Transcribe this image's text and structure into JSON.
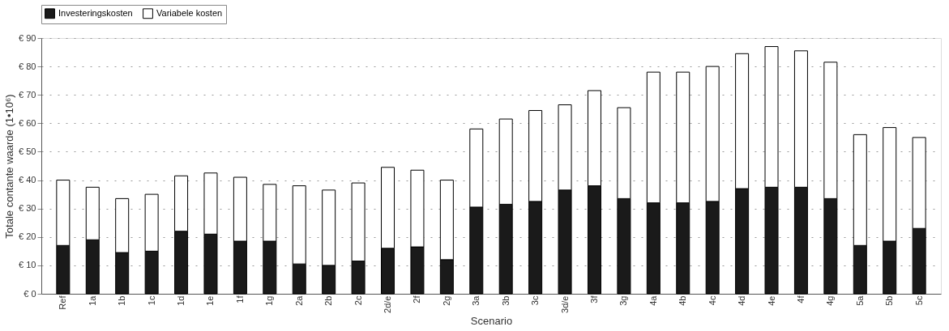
{
  "chart_data": {
    "type": "bar",
    "stacked": true,
    "xlabel": "Scenario",
    "ylabel": "Totale contante waarde (1•10⁶)",
    "categories": [
      "Ref",
      "1a",
      "1b",
      "1c",
      "1d",
      "1e",
      "1f",
      "1g",
      "2a",
      "2b",
      "2c",
      "2d/e",
      "2f",
      "2g",
      "3a",
      "3b",
      "3c",
      "3d/e",
      "3f",
      "3g",
      "4a",
      "4b",
      "4c",
      "4d",
      "4e",
      "4f",
      "4g",
      "5a",
      "5b",
      "5c"
    ],
    "series": [
      {
        "name": "Investeringskosten",
        "color": "#1a1a1a",
        "values": [
          17,
          19,
          14.5,
          15,
          22,
          21,
          18.5,
          18.5,
          10.5,
          10,
          11.5,
          16,
          16.5,
          12,
          30.5,
          31.5,
          32.5,
          36.5,
          38,
          33.5,
          32,
          32,
          32.5,
          37,
          37.5,
          37.5,
          33.5,
          17,
          18.5,
          23
        ]
      },
      {
        "name": "Variabele kosten",
        "color": "#ffffff",
        "values": [
          23,
          18.5,
          19,
          20,
          19.5,
          21.5,
          22.5,
          20,
          27.5,
          26.5,
          27.5,
          28.5,
          27,
          28,
          27.5,
          30,
          32,
          30,
          33.5,
          32,
          46,
          46,
          47.5,
          47.5,
          49.5,
          48,
          48,
          39,
          40,
          32
        ]
      }
    ],
    "ylim": [
      0,
      90
    ],
    "yticks": [
      {
        "value": 0,
        "label": "€ 0"
      },
      {
        "value": 10,
        "label": "€ 10"
      },
      {
        "value": 20,
        "label": "€ 20"
      },
      {
        "value": 30,
        "label": "€ 30"
      },
      {
        "value": 40,
        "label": "€ 40"
      },
      {
        "value": 50,
        "label": "€ 50"
      },
      {
        "value": 60,
        "label": "€ 60"
      },
      {
        "value": 70,
        "label": "€ 70"
      },
      {
        "value": 80,
        "label": "€ 80"
      },
      {
        "value": 90,
        "label": "€ 90"
      }
    ],
    "grid": "y",
    "legend": "top"
  }
}
